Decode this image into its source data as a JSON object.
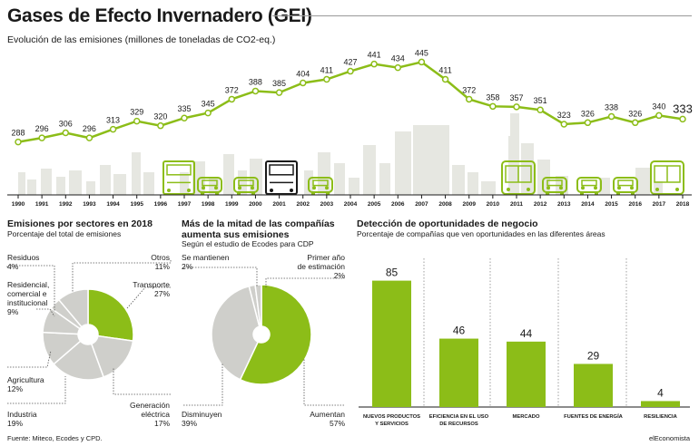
{
  "header": {
    "title": "Gases de Efecto Invernadero (GEI)",
    "subtitle": "Evolución de las emisiones (millones de toneladas de CO2-eq.)"
  },
  "colors": {
    "accent": "#8cbd18",
    "gray": "#cfcfcb",
    "dark": "#1a1a1a",
    "bar": "#8cbd18"
  },
  "chart_data": [
    {
      "type": "line",
      "x": [
        "1990",
        "1991",
        "1992",
        "1993",
        "1994",
        "1995",
        "1996",
        "1997",
        "1998",
        "1999",
        "2000",
        "2001",
        "2002",
        "2003",
        "2004",
        "2005",
        "2006",
        "2007",
        "2008",
        "2009",
        "2010",
        "2011",
        "2012",
        "2013",
        "2014",
        "2015",
        "2016",
        "2017",
        "2018"
      ],
      "values": [
        288,
        296,
        306,
        296,
        313,
        329,
        320,
        335,
        345,
        372,
        388,
        385,
        404,
        411,
        427,
        441,
        434,
        445,
        411,
        372,
        358,
        357,
        351,
        323,
        326,
        338,
        326,
        340,
        333
      ],
      "ylim": [
        250,
        460
      ],
      "grid": false
    },
    {
      "type": "pie",
      "title": "Emisiones por sectores en 2018",
      "subtitle": "Porcentaje del total de emisiones",
      "slices": [
        {
          "name": "Transporte",
          "value": 27,
          "label": "27%"
        },
        {
          "name": "Generación eléctrica",
          "name_lines": [
            "Generación",
            "eléctrica"
          ],
          "value": 17,
          "label": "17%"
        },
        {
          "name": "Industria",
          "value": 19,
          "label": "19%"
        },
        {
          "name": "Agricultura",
          "value": 12,
          "label": "12%"
        },
        {
          "name": "Residencial, comercial e institucional",
          "name_lines": [
            "Residencial,",
            "comercial e",
            "institucional"
          ],
          "value": 9,
          "label": "9%"
        },
        {
          "name": "Residuos",
          "value": 4,
          "label": "4%"
        },
        {
          "name": "Otros",
          "value": 11,
          "label": "11%"
        }
      ]
    },
    {
      "type": "pie",
      "title": "Más de la mitad de las compañías aumenta sus emisiones",
      "title_lines": [
        "Más de la mitad de las compañías",
        "aumenta sus emisiones"
      ],
      "subtitle": "Según el estudio de Ecodes para CDP",
      "slices": [
        {
          "name": "Aumentan",
          "value": 57,
          "label": "57%"
        },
        {
          "name": "Disminuyen",
          "value": 39,
          "label": "39%"
        },
        {
          "name": "Se mantienen",
          "value": 2,
          "label": "2%"
        },
        {
          "name": "Primer año de estimación",
          "name_lines": [
            "Primer año",
            "de estimación"
          ],
          "value": 2,
          "label": "2%"
        }
      ]
    },
    {
      "type": "bar",
      "title": "Detección de oportunidades de negocio",
      "subtitle": "Porcentaje de compañías que ven oportunidades en las diferentes áreas",
      "categories": [
        "NUEVOS PRODUCTOS Y SERVICIOS",
        "EFICIENCIA EN EL USO DE RECURSOS",
        "MERCADO",
        "FUENTES DE ENERGÍA",
        "RESILIENCIA"
      ],
      "category_lines": [
        [
          "NUEVOS PRODUCTOS",
          "Y SERVICIOS"
        ],
        [
          "EFICIENCIA EN EL USO",
          "DE RECURSOS"
        ],
        [
          "MERCADO"
        ],
        [
          "FUENTES DE ENERGÍA"
        ],
        [
          "RESILIENCIA"
        ]
      ],
      "values": [
        85,
        46,
        44,
        29,
        4
      ],
      "ylim": [
        0,
        100
      ]
    }
  ],
  "footer": {
    "source": "Fuente: Miteco, Ecodes y CPD.",
    "brand": "elEconomista"
  }
}
